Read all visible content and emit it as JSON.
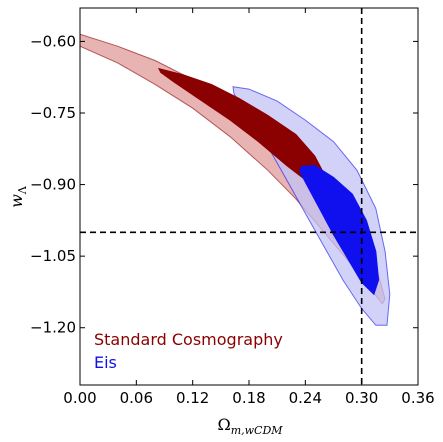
{
  "chart_data": {
    "type": "contour",
    "xlabel": "Ω_{m,wCDM}",
    "ylabel": "w_Λ",
    "xlim": [
      0.0,
      0.36
    ],
    "ylim": [
      -1.32,
      -0.53
    ],
    "xticks": [
      0.0,
      0.06,
      0.12,
      0.18,
      0.24,
      0.3,
      0.36
    ],
    "xtick_labels": [
      "0.00",
      "0.06",
      "0.12",
      "0.18",
      "0.24",
      "0.30",
      "0.36"
    ],
    "yticks": [
      -0.6,
      -0.75,
      -0.9,
      -1.05,
      -1.2
    ],
    "ytick_labels": [
      "−0.60",
      "−0.75",
      "−0.90",
      "−1.05",
      "−1.20"
    ],
    "grid": false,
    "legend_position": "bottom-left",
    "reference_lines": {
      "vertical_x": 0.3,
      "horizontal_y": -1.0
    },
    "series": [
      {
        "name": "Standard Cosmography",
        "color": "#8b0000",
        "light_color": "#e8b3b3",
        "outer_contour": [
          [
            0.0,
            -0.585
          ],
          [
            0.04,
            -0.61
          ],
          [
            0.08,
            -0.64
          ],
          [
            0.12,
            -0.68
          ],
          [
            0.16,
            -0.73
          ],
          [
            0.2,
            -0.79
          ],
          [
            0.24,
            -0.86
          ],
          [
            0.27,
            -0.93
          ],
          [
            0.295,
            -1.0
          ],
          [
            0.315,
            -1.07
          ],
          [
            0.325,
            -1.14
          ],
          [
            0.322,
            -1.15
          ],
          [
            0.31,
            -1.12
          ],
          [
            0.29,
            -1.07
          ],
          [
            0.26,
            -1.0
          ],
          [
            0.23,
            -0.93
          ],
          [
            0.2,
            -0.87
          ],
          [
            0.16,
            -0.8
          ],
          [
            0.12,
            -0.74
          ],
          [
            0.08,
            -0.69
          ],
          [
            0.04,
            -0.645
          ],
          [
            0.0,
            -0.61
          ]
        ],
        "inner_contour": [
          [
            0.084,
            -0.657
          ],
          [
            0.11,
            -0.67
          ],
          [
            0.14,
            -0.69
          ],
          [
            0.17,
            -0.72
          ],
          [
            0.2,
            -0.755
          ],
          [
            0.23,
            -0.795
          ],
          [
            0.25,
            -0.84
          ],
          [
            0.262,
            -0.885
          ],
          [
            0.265,
            -0.915
          ],
          [
            0.25,
            -0.905
          ],
          [
            0.22,
            -0.86
          ],
          [
            0.19,
            -0.81
          ],
          [
            0.16,
            -0.765
          ],
          [
            0.13,
            -0.725
          ],
          [
            0.1,
            -0.685
          ],
          [
            0.086,
            -0.665
          ]
        ]
      },
      {
        "name": "Eis",
        "color": "#1010ee",
        "light_color": "#c3c3f5",
        "outer_contour": [
          [
            0.163,
            -0.695
          ],
          [
            0.18,
            -0.7
          ],
          [
            0.21,
            -0.725
          ],
          [
            0.24,
            -0.765
          ],
          [
            0.27,
            -0.81
          ],
          [
            0.295,
            -0.87
          ],
          [
            0.315,
            -0.95
          ],
          [
            0.325,
            -1.04
          ],
          [
            0.33,
            -1.13
          ],
          [
            0.327,
            -1.195
          ],
          [
            0.315,
            -1.195
          ],
          [
            0.3,
            -1.16
          ],
          [
            0.28,
            -1.1
          ],
          [
            0.26,
            -1.03
          ],
          [
            0.24,
            -0.96
          ],
          [
            0.22,
            -0.89
          ],
          [
            0.2,
            -0.82
          ],
          [
            0.18,
            -0.755
          ],
          [
            0.164,
            -0.71
          ]
        ],
        "inner_contour": [
          [
            0.236,
            -0.862
          ],
          [
            0.25,
            -0.86
          ],
          [
            0.27,
            -0.885
          ],
          [
            0.29,
            -0.92
          ],
          [
            0.305,
            -0.975
          ],
          [
            0.315,
            -1.04
          ],
          [
            0.318,
            -1.1
          ],
          [
            0.313,
            -1.13
          ],
          [
            0.3,
            -1.105
          ],
          [
            0.285,
            -1.055
          ],
          [
            0.27,
            -1.005
          ],
          [
            0.255,
            -0.95
          ],
          [
            0.24,
            -0.895
          ],
          [
            0.234,
            -0.872
          ]
        ]
      }
    ]
  }
}
